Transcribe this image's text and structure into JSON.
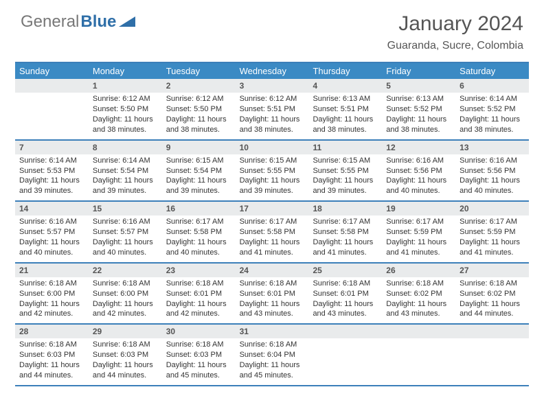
{
  "brand": {
    "general": "General",
    "blue": "Blue"
  },
  "header": {
    "title": "January 2024",
    "location": "Guaranda, Sucre, Colombia"
  },
  "colors": {
    "header_bar": "#3b8ac4",
    "rule": "#3b7fb9",
    "daynum_bg": "#e9ebec",
    "text": "#333333",
    "title": "#555555"
  },
  "daysOfWeek": [
    "Sunday",
    "Monday",
    "Tuesday",
    "Wednesday",
    "Thursday",
    "Friday",
    "Saturday"
  ],
  "weeks": [
    [
      {
        "n": "",
        "sr": "",
        "ss": "",
        "dl": ""
      },
      {
        "n": "1",
        "sr": "Sunrise: 6:12 AM",
        "ss": "Sunset: 5:50 PM",
        "dl": "Daylight: 11 hours and 38 minutes."
      },
      {
        "n": "2",
        "sr": "Sunrise: 6:12 AM",
        "ss": "Sunset: 5:50 PM",
        "dl": "Daylight: 11 hours and 38 minutes."
      },
      {
        "n": "3",
        "sr": "Sunrise: 6:12 AM",
        "ss": "Sunset: 5:51 PM",
        "dl": "Daylight: 11 hours and 38 minutes."
      },
      {
        "n": "4",
        "sr": "Sunrise: 6:13 AM",
        "ss": "Sunset: 5:51 PM",
        "dl": "Daylight: 11 hours and 38 minutes."
      },
      {
        "n": "5",
        "sr": "Sunrise: 6:13 AM",
        "ss": "Sunset: 5:52 PM",
        "dl": "Daylight: 11 hours and 38 minutes."
      },
      {
        "n": "6",
        "sr": "Sunrise: 6:14 AM",
        "ss": "Sunset: 5:52 PM",
        "dl": "Daylight: 11 hours and 38 minutes."
      }
    ],
    [
      {
        "n": "7",
        "sr": "Sunrise: 6:14 AM",
        "ss": "Sunset: 5:53 PM",
        "dl": "Daylight: 11 hours and 39 minutes."
      },
      {
        "n": "8",
        "sr": "Sunrise: 6:14 AM",
        "ss": "Sunset: 5:54 PM",
        "dl": "Daylight: 11 hours and 39 minutes."
      },
      {
        "n": "9",
        "sr": "Sunrise: 6:15 AM",
        "ss": "Sunset: 5:54 PM",
        "dl": "Daylight: 11 hours and 39 minutes."
      },
      {
        "n": "10",
        "sr": "Sunrise: 6:15 AM",
        "ss": "Sunset: 5:55 PM",
        "dl": "Daylight: 11 hours and 39 minutes."
      },
      {
        "n": "11",
        "sr": "Sunrise: 6:15 AM",
        "ss": "Sunset: 5:55 PM",
        "dl": "Daylight: 11 hours and 39 minutes."
      },
      {
        "n": "12",
        "sr": "Sunrise: 6:16 AM",
        "ss": "Sunset: 5:56 PM",
        "dl": "Daylight: 11 hours and 40 minutes."
      },
      {
        "n": "13",
        "sr": "Sunrise: 6:16 AM",
        "ss": "Sunset: 5:56 PM",
        "dl": "Daylight: 11 hours and 40 minutes."
      }
    ],
    [
      {
        "n": "14",
        "sr": "Sunrise: 6:16 AM",
        "ss": "Sunset: 5:57 PM",
        "dl": "Daylight: 11 hours and 40 minutes."
      },
      {
        "n": "15",
        "sr": "Sunrise: 6:16 AM",
        "ss": "Sunset: 5:57 PM",
        "dl": "Daylight: 11 hours and 40 minutes."
      },
      {
        "n": "16",
        "sr": "Sunrise: 6:17 AM",
        "ss": "Sunset: 5:58 PM",
        "dl": "Daylight: 11 hours and 40 minutes."
      },
      {
        "n": "17",
        "sr": "Sunrise: 6:17 AM",
        "ss": "Sunset: 5:58 PM",
        "dl": "Daylight: 11 hours and 41 minutes."
      },
      {
        "n": "18",
        "sr": "Sunrise: 6:17 AM",
        "ss": "Sunset: 5:58 PM",
        "dl": "Daylight: 11 hours and 41 minutes."
      },
      {
        "n": "19",
        "sr": "Sunrise: 6:17 AM",
        "ss": "Sunset: 5:59 PM",
        "dl": "Daylight: 11 hours and 41 minutes."
      },
      {
        "n": "20",
        "sr": "Sunrise: 6:17 AM",
        "ss": "Sunset: 5:59 PM",
        "dl": "Daylight: 11 hours and 41 minutes."
      }
    ],
    [
      {
        "n": "21",
        "sr": "Sunrise: 6:18 AM",
        "ss": "Sunset: 6:00 PM",
        "dl": "Daylight: 11 hours and 42 minutes."
      },
      {
        "n": "22",
        "sr": "Sunrise: 6:18 AM",
        "ss": "Sunset: 6:00 PM",
        "dl": "Daylight: 11 hours and 42 minutes."
      },
      {
        "n": "23",
        "sr": "Sunrise: 6:18 AM",
        "ss": "Sunset: 6:01 PM",
        "dl": "Daylight: 11 hours and 42 minutes."
      },
      {
        "n": "24",
        "sr": "Sunrise: 6:18 AM",
        "ss": "Sunset: 6:01 PM",
        "dl": "Daylight: 11 hours and 43 minutes."
      },
      {
        "n": "25",
        "sr": "Sunrise: 6:18 AM",
        "ss": "Sunset: 6:01 PM",
        "dl": "Daylight: 11 hours and 43 minutes."
      },
      {
        "n": "26",
        "sr": "Sunrise: 6:18 AM",
        "ss": "Sunset: 6:02 PM",
        "dl": "Daylight: 11 hours and 43 minutes."
      },
      {
        "n": "27",
        "sr": "Sunrise: 6:18 AM",
        "ss": "Sunset: 6:02 PM",
        "dl": "Daylight: 11 hours and 44 minutes."
      }
    ],
    [
      {
        "n": "28",
        "sr": "Sunrise: 6:18 AM",
        "ss": "Sunset: 6:03 PM",
        "dl": "Daylight: 11 hours and 44 minutes."
      },
      {
        "n": "29",
        "sr": "Sunrise: 6:18 AM",
        "ss": "Sunset: 6:03 PM",
        "dl": "Daylight: 11 hours and 44 minutes."
      },
      {
        "n": "30",
        "sr": "Sunrise: 6:18 AM",
        "ss": "Sunset: 6:03 PM",
        "dl": "Daylight: 11 hours and 45 minutes."
      },
      {
        "n": "31",
        "sr": "Sunrise: 6:18 AM",
        "ss": "Sunset: 6:04 PM",
        "dl": "Daylight: 11 hours and 45 minutes."
      },
      {
        "n": "",
        "sr": "",
        "ss": "",
        "dl": ""
      },
      {
        "n": "",
        "sr": "",
        "ss": "",
        "dl": ""
      },
      {
        "n": "",
        "sr": "",
        "ss": "",
        "dl": ""
      }
    ]
  ]
}
